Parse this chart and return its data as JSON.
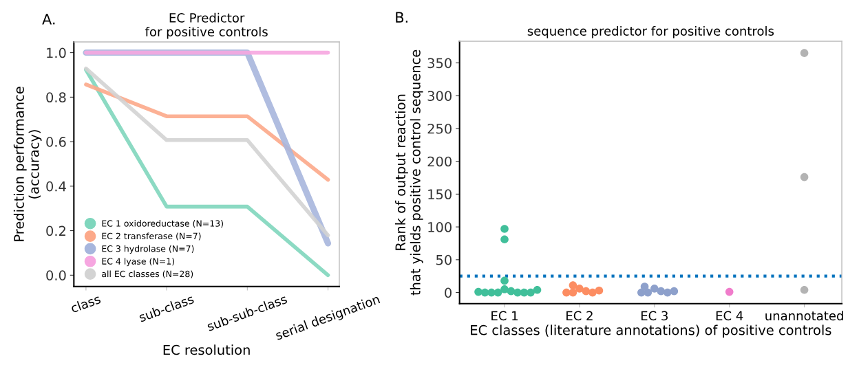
{
  "chart_data": [
    {
      "type": "line",
      "title": "EC Predictor\nfor positive controls",
      "xlabel": "EC resolution",
      "ylabel": "Prediction performance\n(accuracy)",
      "annotations": [
        "A."
      ],
      "categories": [
        "class",
        "sub-class",
        "sub-sub-class",
        "serial designation"
      ],
      "series": [
        {
          "name": "EC 1 oxidoreductase (N=13)",
          "color": "#7fd6bd",
          "values": [
            0.923,
            0.308,
            0.308,
            0.0
          ]
        },
        {
          "name": "EC 2 transferase (N=7)",
          "color": "#fca98a",
          "values": [
            0.857,
            0.714,
            0.714,
            0.429
          ]
        },
        {
          "name": "EC 3 hydrolase (N=7)",
          "color": "#a7b6dd",
          "values": [
            1.0,
            1.0,
            1.0,
            0.143
          ]
        },
        {
          "name": "EC 4 lyase (N=1)",
          "color": "#f6a6e0",
          "values": [
            1.0,
            1.0,
            1.0,
            1.0
          ]
        },
        {
          "name": "all EC classes (N=28)",
          "color": "#d3d3d3",
          "values": [
            0.929,
            0.607,
            0.607,
            0.179
          ]
        }
      ],
      "ylim": [
        -0.051,
        1.048
      ],
      "yticks": [
        {
          "value": 0,
          "label": "0.0"
        },
        0.2,
        0.4,
        0.6,
        0.8,
        {
          "value": 1,
          "label": "1.0"
        }
      ],
      "grid": false,
      "legend": "bottom left",
      "marker": "none",
      "line_style": "solid"
    },
    {
      "type": "scatter",
      "title": "sequence predictor for positive controls",
      "xlabel": "EC classes (literature annotations) of positive controls",
      "ylabel": "Rank of output reaction\nthat yields positive control sequence",
      "annotations": [
        "B."
      ],
      "categories": [
        "EC 1",
        "EC 2",
        "EC 3",
        "EC 4",
        "unannotated"
      ],
      "series": [
        {
          "color": "#41bf9a",
          "x": [
            "EC 1",
            "EC 1",
            "EC 1",
            "EC 1",
            "EC 1",
            "EC 1",
            "EC 1",
            "EC 1",
            "EC 1",
            "EC 1",
            "EC 1",
            "EC 1",
            "EC 1"
          ],
          "values": [
            97,
            81,
            18,
            5,
            2,
            0,
            0,
            0,
            0,
            0,
            0,
            1,
            4
          ]
        },
        {
          "color": "#fc8d62",
          "x": [
            "EC 2",
            "EC 2",
            "EC 2",
            "EC 2",
            "EC 2",
            "EC 2",
            "EC 2"
          ],
          "values": [
            6,
            2,
            0,
            11,
            0,
            0,
            3
          ]
        },
        {
          "color": "#8da0cb",
          "x": [
            "EC 3",
            "EC 3",
            "EC 3",
            "EC 3",
            "EC 3",
            "EC 3",
            "EC 3"
          ],
          "values": [
            6,
            2,
            0,
            9,
            0,
            0,
            2
          ]
        },
        {
          "color": "#f07ccb",
          "x": [
            "EC 4"
          ],
          "values": [
            1
          ]
        },
        {
          "color": "#b3b3b3",
          "x": [
            "unannotated",
            "unannotated",
            "unannotated"
          ],
          "values": [
            365,
            176,
            4
          ]
        }
      ],
      "ylim": [
        -17,
        383
      ],
      "yticks": [
        0,
        50,
        100,
        150,
        200,
        250,
        300,
        350
      ],
      "ref_lines": [
        {
          "axis": "y",
          "value": 25,
          "color": "#0072bd",
          "line_style": "dotted"
        }
      ],
      "grid": false,
      "legend": false,
      "marker": "circle"
    }
  ]
}
